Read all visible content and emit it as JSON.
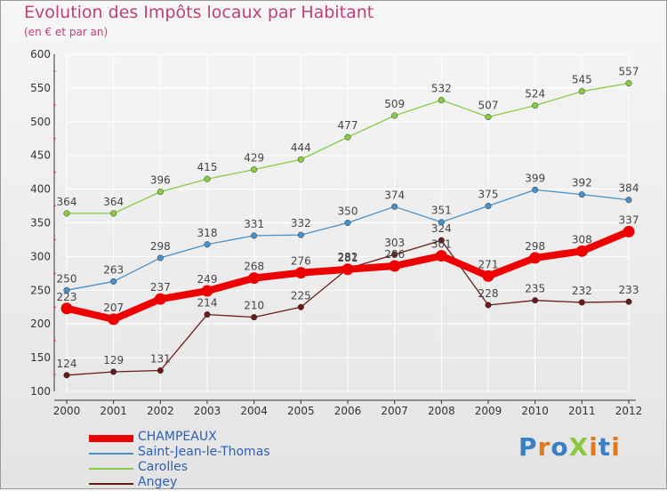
{
  "title": "Evolution des Impôts locaux par Habitant",
  "subtitle": "(en € et par an)",
  "logo_text": "ProXiti",
  "colors": {
    "title": "#c0407a",
    "axis": "#333333",
    "grid": "#ffffff"
  },
  "chart_data": {
    "type": "line",
    "x": [
      2000,
      2001,
      2002,
      2003,
      2004,
      2005,
      2006,
      2007,
      2008,
      2009,
      2010,
      2011,
      2012
    ],
    "ylim": [
      100,
      600
    ],
    "yticks": [
      100,
      150,
      200,
      250,
      300,
      350,
      400,
      450,
      500,
      550,
      600
    ],
    "grid": true,
    "legend_position": "bottom-left",
    "series": [
      {
        "name": "CHAMPEAUX",
        "color": "#ee0000",
        "values": [
          223,
          207,
          237,
          249,
          268,
          276,
          281,
          286,
          301,
          271,
          298,
          308,
          337
        ]
      },
      {
        "name": "Saint-Jean-le-Thomas",
        "color": "#4a90c8",
        "values": [
          250,
          263,
          298,
          318,
          331,
          332,
          350,
          374,
          351,
          375,
          399,
          392,
          384
        ]
      },
      {
        "name": "Carolles",
        "color": "#88cc44",
        "values": [
          364,
          364,
          396,
          415,
          429,
          444,
          477,
          509,
          532,
          507,
          524,
          545,
          557
        ]
      },
      {
        "name": "Angey",
        "color": "#6b1a1a",
        "values": [
          124,
          129,
          131,
          214,
          210,
          225,
          282,
          303,
          324,
          228,
          235,
          232,
          233
        ]
      }
    ]
  }
}
